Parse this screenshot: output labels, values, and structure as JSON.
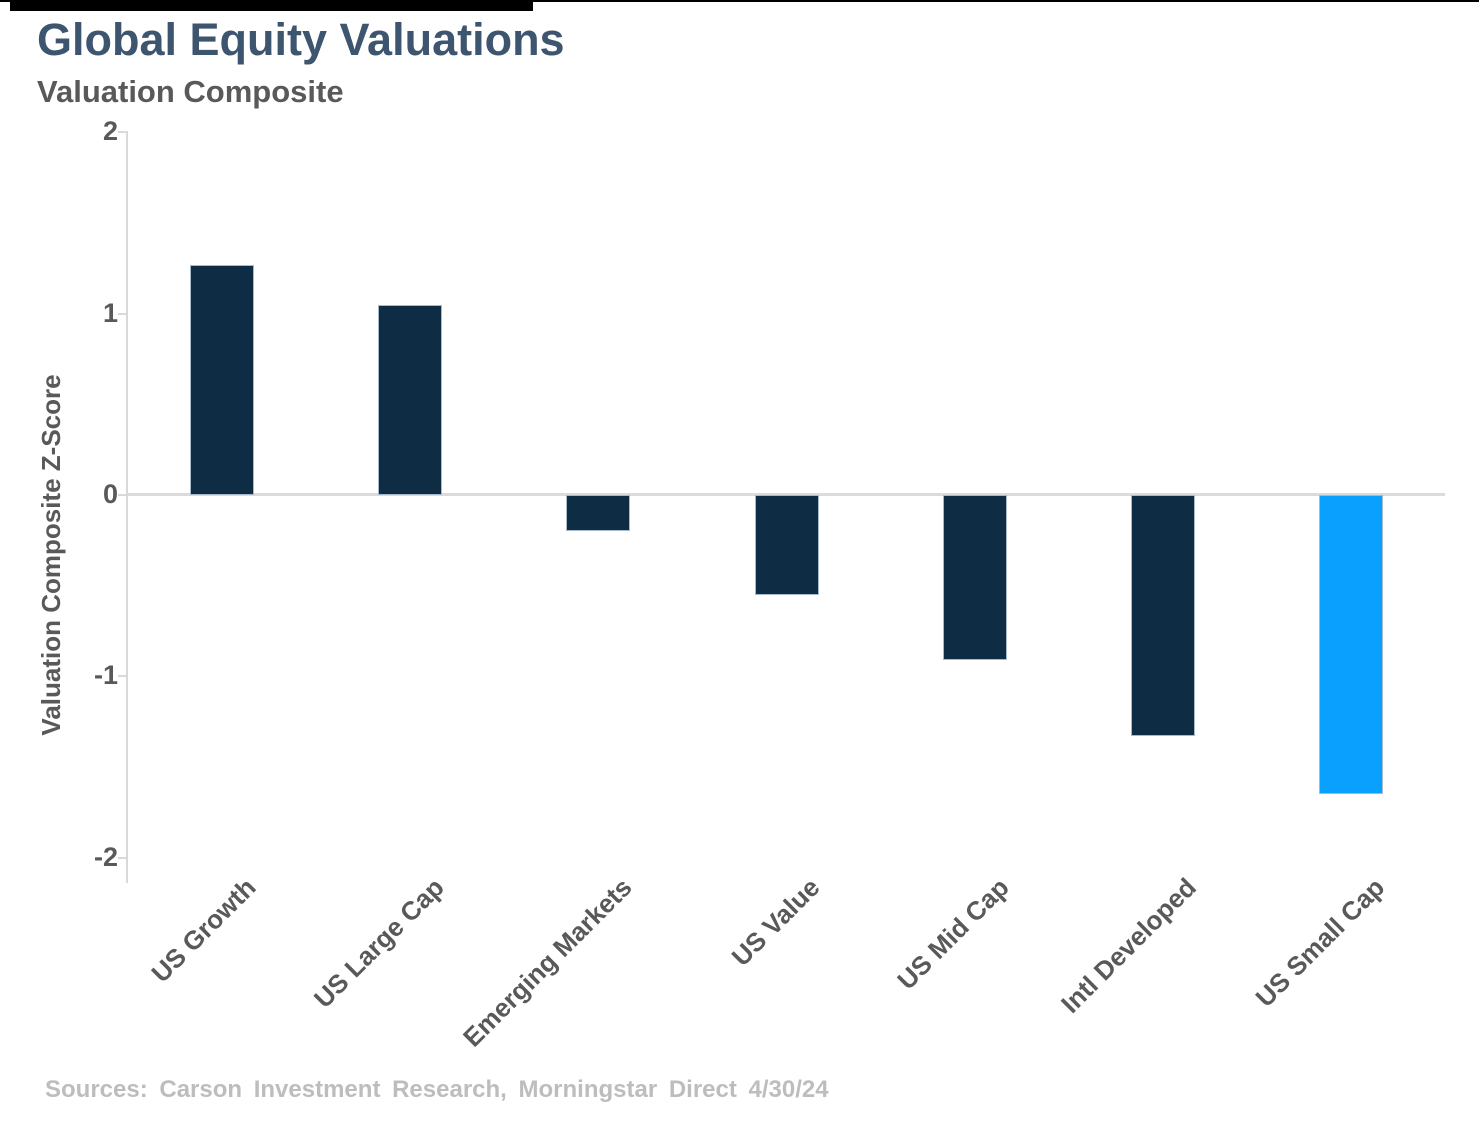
{
  "header": {
    "title": "Global Equity Valuations",
    "subtitle": "Valuation Composite"
  },
  "chart_data": {
    "type": "bar",
    "title": "Global Equity Valuations",
    "subtitle": "Valuation Composite",
    "categories": [
      "US Growth",
      "US Large Cap",
      "Emerging Markets",
      "US Value",
      "US Mid Cap",
      "Intl Developed",
      "US Small Cap"
    ],
    "values": [
      1.27,
      1.05,
      -0.2,
      -0.55,
      -0.91,
      -1.33,
      -1.65
    ],
    "xlabel": "",
    "ylabel": "Valuation Composite Z-Score",
    "ylim": [
      -2,
      2
    ],
    "yticks": [
      2,
      1,
      0,
      -1,
      -2
    ],
    "grid": "zero-line-only",
    "legend": "none",
    "bar_color": "#0E2D45",
    "highlight_color": "#0AA0FE",
    "highlight_index": 6,
    "highlighted_category": "US Small Cap"
  },
  "colors": {
    "title_text": "#3E5570",
    "subtitle_text": "#595959",
    "axis_text": "#595959",
    "axis_line": "#D9D9D9",
    "source_text": "#BDBDBD",
    "top_accent": "#000000"
  },
  "footer": {
    "sources": "Sources: Carson Investment Research, Morningstar Direct 4/30/24"
  }
}
